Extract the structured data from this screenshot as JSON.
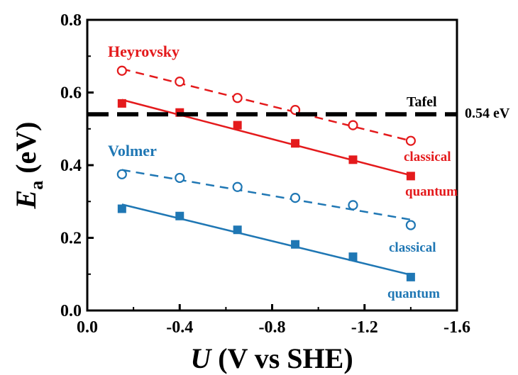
{
  "chart_data": {
    "type": "scatter",
    "xlabel": {
      "italic": "U",
      "rest": " (V vs SHE)"
    },
    "ylabel": {
      "italic": "E",
      "sub": "a",
      "rest": " (eV)"
    },
    "xlim": [
      0.0,
      -1.6
    ],
    "ylim": [
      0.0,
      0.8
    ],
    "xticks": [
      "0.0",
      "-0.4",
      "-0.8",
      "-1.2",
      "-1.6"
    ],
    "yticks": [
      "0.0",
      "0.2",
      "0.4",
      "0.6",
      "0.8"
    ],
    "x": [
      -0.15,
      -0.4,
      -0.65,
      -0.9,
      -1.15,
      -1.4
    ],
    "series": [
      {
        "name": "Heyrovsky classical",
        "color": "#e41a1c",
        "marker": "open-circle",
        "line": "dashed",
        "values": [
          0.66,
          0.63,
          0.585,
          0.552,
          0.51,
          0.467
        ],
        "fit": [
          0.665,
          0.467
        ]
      },
      {
        "name": "Heyrovsky quantum",
        "color": "#e41a1c",
        "marker": "filled-square",
        "line": "solid",
        "values": [
          0.57,
          0.545,
          0.51,
          0.46,
          0.415,
          0.37
        ],
        "fit": [
          0.58,
          0.372
        ]
      },
      {
        "name": "Volmer classical",
        "color": "#1f77b4",
        "marker": "open-circle",
        "line": "dashed",
        "values": [
          0.375,
          0.365,
          0.34,
          0.31,
          0.29,
          0.235
        ],
        "fit": [
          0.387,
          0.25
        ]
      },
      {
        "name": "Volmer quantum",
        "color": "#1f77b4",
        "marker": "filled-square",
        "line": "solid",
        "values": [
          0.28,
          0.26,
          0.222,
          0.182,
          0.148,
          0.092
        ],
        "fit": [
          0.292,
          0.098
        ]
      }
    ],
    "reference_line": {
      "y": 0.54,
      "color": "#000000",
      "style": "dashed",
      "label": "Tafel",
      "value_label": "0.54 eV"
    },
    "annotations": [
      {
        "text": "Heyrovsky",
        "color": "#e41a1c"
      },
      {
        "text": "classical",
        "color": "#e41a1c"
      },
      {
        "text": "quantum",
        "color": "#e41a1c"
      },
      {
        "text": "Volmer",
        "color": "#1f77b4"
      },
      {
        "text": "classical",
        "color": "#1f77b4"
      },
      {
        "text": "quantum",
        "color": "#1f77b4"
      }
    ]
  }
}
